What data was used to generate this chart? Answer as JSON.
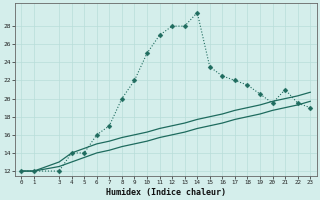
{
  "xlabel": "Humidex (Indice chaleur)",
  "bg_color": "#d4eeeb",
  "line_color": "#1e6b5e",
  "grid_color": "#b8ddd9",
  "xlim": [
    -0.5,
    23.5
  ],
  "ylim": [
    11.5,
    30.5
  ],
  "xticks": [
    0,
    1,
    3,
    4,
    5,
    6,
    7,
    8,
    9,
    10,
    11,
    12,
    13,
    14,
    15,
    16,
    17,
    18,
    19,
    20,
    21,
    22,
    23
  ],
  "yticks": [
    12,
    14,
    16,
    18,
    20,
    22,
    24,
    26,
    28
  ],
  "curve_x": [
    0,
    1,
    3,
    4,
    5,
    6,
    7,
    8,
    9,
    10,
    11,
    12,
    13,
    14,
    15,
    16,
    17,
    18,
    19,
    20,
    21,
    22,
    23
  ],
  "curve_y": [
    12,
    12,
    12,
    14,
    14,
    16,
    17,
    20,
    22,
    25,
    27,
    28,
    28,
    29.5,
    23.5,
    22.5,
    22,
    21.5,
    20.5,
    19.5,
    21,
    19.5,
    19
  ],
  "line2_x": [
    0,
    1,
    3,
    4,
    5,
    6,
    7,
    8,
    9,
    10,
    11,
    12,
    13,
    14,
    15,
    16,
    17,
    18,
    19,
    20,
    21,
    22,
    23
  ],
  "line2_y": [
    12,
    12,
    13,
    14,
    14.5,
    15,
    15.3,
    15.7,
    16,
    16.3,
    16.7,
    17,
    17.3,
    17.7,
    18,
    18.3,
    18.7,
    19,
    19.3,
    19.7,
    20,
    20.3,
    20.7
  ],
  "line3_x": [
    0,
    1,
    3,
    4,
    5,
    6,
    7,
    8,
    9,
    10,
    11,
    12,
    13,
    14,
    15,
    16,
    17,
    18,
    19,
    20,
    21,
    22,
    23
  ],
  "line3_y": [
    12,
    12,
    12.5,
    13,
    13.5,
    14,
    14.3,
    14.7,
    15,
    15.3,
    15.7,
    16,
    16.3,
    16.7,
    17,
    17.3,
    17.7,
    18,
    18.3,
    18.7,
    19,
    19.3,
    19.7
  ]
}
